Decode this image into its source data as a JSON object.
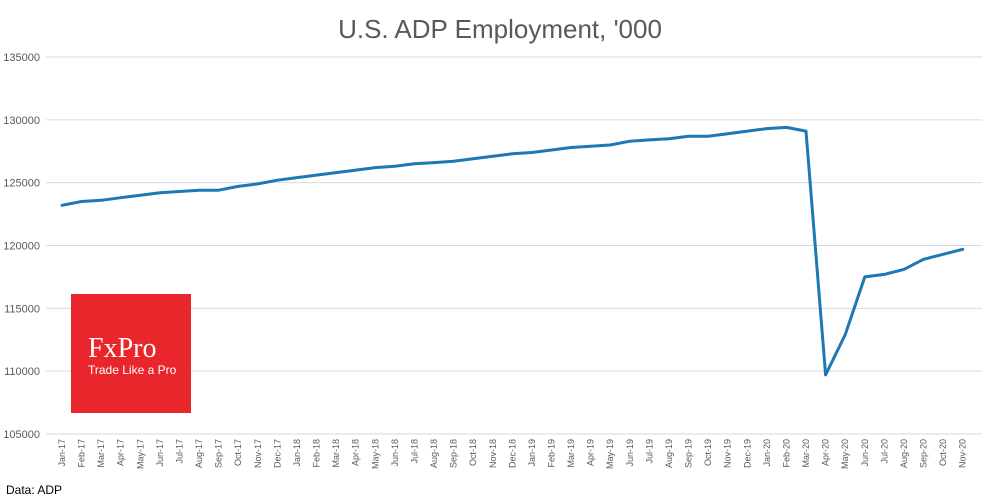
{
  "chart_data": {
    "type": "line",
    "title": "U.S. ADP Employment, '000",
    "xlabel": "",
    "ylabel": "",
    "ylim": [
      105000,
      135000
    ],
    "y_ticks": [
      105000,
      110000,
      115000,
      120000,
      125000,
      130000,
      135000
    ],
    "y_tick_labels": [
      "105000",
      "110000",
      "115000",
      "120000",
      "125000",
      "130000",
      "135000"
    ],
    "grid": true,
    "categories": [
      "Jan-17",
      "Feb-17",
      "Mar-17",
      "Apr-17",
      "May-17",
      "Jun-17",
      "Jul-17",
      "Aug-17",
      "Sep-17",
      "Oct-17",
      "Nov-17",
      "Dec-17",
      "Jan-18",
      "Feb-18",
      "Mar-18",
      "Apr-18",
      "May-18",
      "Jun-18",
      "Jul-18",
      "Aug-18",
      "Sep-18",
      "Oct-18",
      "Nov-18",
      "Dec-18",
      "Jan-19",
      "Feb-19",
      "Mar-19",
      "Apr-19",
      "May-19",
      "Jun-19",
      "Jul-19",
      "Aug-19",
      "Sep-19",
      "Oct-19",
      "Nov-19",
      "Dec-19",
      "Jan-20",
      "Feb-20",
      "Mar-20",
      "Apr-20",
      "May-20",
      "Jun-20",
      "Jul-20",
      "Aug-20",
      "Sep-20",
      "Oct-20",
      "Nov-20"
    ],
    "series": [
      {
        "color": "#1f77b4",
        "values": [
          123200,
          123500,
          123600,
          123800,
          124000,
          124200,
          124300,
          124400,
          124400,
          124700,
          124900,
          125200,
          125400,
          125600,
          125800,
          126000,
          126200,
          126300,
          126500,
          126600,
          126700,
          126900,
          127100,
          127300,
          127400,
          127600,
          127800,
          127900,
          128000,
          128300,
          128400,
          128500,
          128700,
          128700,
          128900,
          129100,
          129300,
          129400,
          129100,
          109700,
          112900,
          117500,
          117700,
          118100,
          118900,
          119300,
          119700
        ]
      }
    ],
    "source": "Data: ADP"
  },
  "logo": {
    "brand": "FxPro",
    "tagline": "Trade Like a Pro",
    "color": "#e8262c"
  }
}
